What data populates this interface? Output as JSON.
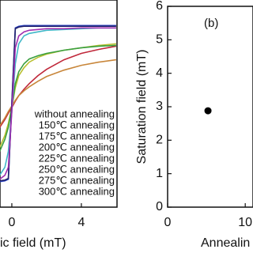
{
  "chart_data": [
    {
      "type": "line",
      "x_label": "ic field (mT)",
      "x": [
        -0.7,
        -0.4,
        -0.2,
        0,
        0.2,
        0.4,
        0.7,
        1,
        1.5,
        2,
        3,
        4,
        5,
        6
      ],
      "xlim": [
        -0.68,
        6.05
      ],
      "xticks": [
        0,
        4
      ],
      "ylim": [
        -1.3,
        1.3
      ],
      "series": [
        {
          "name": "without annealing",
          "color": "#c0283a",
          "values": [
            -0.3,
            -0.2,
            -0.12,
            -0.05,
            0.03,
            0.1,
            0.18,
            0.25,
            0.35,
            0.43,
            0.55,
            0.63,
            0.68,
            0.72
          ]
        },
        {
          "name": "150℃ annealing",
          "color": "#c8863a",
          "values": [
            -0.28,
            -0.18,
            -0.1,
            -0.03,
            0.04,
            0.1,
            0.16,
            0.21,
            0.28,
            0.34,
            0.42,
            0.48,
            0.52,
            0.55
          ]
        },
        {
          "name": "175℃ annealing",
          "color": "#b8c030",
          "values": [
            -0.55,
            -0.4,
            -0.25,
            -0.05,
            0.2,
            0.35,
            0.45,
            0.52,
            0.58,
            0.62,
            0.67,
            0.7,
            0.73,
            0.75
          ]
        },
        {
          "name": "200℃ annealing",
          "color": "#3aa040",
          "values": [
            -0.6,
            -0.45,
            -0.3,
            -0.05,
            0.25,
            0.4,
            0.5,
            0.56,
            0.6,
            0.63,
            0.67,
            0.7,
            0.72,
            0.73
          ]
        },
        {
          "name": "225℃ annealing",
          "color": "#40b8c8",
          "values": [
            -0.9,
            -0.8,
            -0.6,
            -0.1,
            0.5,
            0.75,
            0.85,
            0.88,
            0.9,
            0.92,
            0.93,
            0.94,
            0.95,
            0.95
          ]
        },
        {
          "name": "250℃ annealing",
          "color": "#2840c0",
          "values": [
            -0.98,
            -0.97,
            -0.95,
            0,
            0.95,
            0.97,
            0.98,
            0.98,
            0.98,
            0.98,
            0.98,
            0.98,
            0.98,
            0.98
          ]
        },
        {
          "name": "275℃ annealing",
          "color": "#20206a",
          "values": [
            -0.97,
            -0.96,
            -0.94,
            0,
            0.94,
            0.96,
            0.97,
            0.97,
            0.97,
            0.97,
            0.97,
            0.97,
            0.97,
            0.97
          ]
        },
        {
          "name": "300℃ annealing",
          "color": "#a030b0",
          "values": [
            -0.95,
            -0.9,
            -0.8,
            -0.1,
            0.7,
            0.85,
            0.9,
            0.92,
            0.93,
            0.94,
            0.94,
            0.95,
            0.95,
            0.95
          ]
        }
      ]
    },
    {
      "type": "scatter",
      "panel_label": "(b)",
      "x_label": "Annealin",
      "y_label": "Saturation field (mT)",
      "x": [
        5.2
      ],
      "values": [
        2.88
      ],
      "color": "#000000",
      "xlim": [
        0,
        11
      ],
      "xticks": [
        0,
        10
      ],
      "ylim": [
        0,
        6
      ],
      "yticks": [
        0,
        1,
        2,
        3,
        4,
        5,
        6
      ]
    }
  ]
}
